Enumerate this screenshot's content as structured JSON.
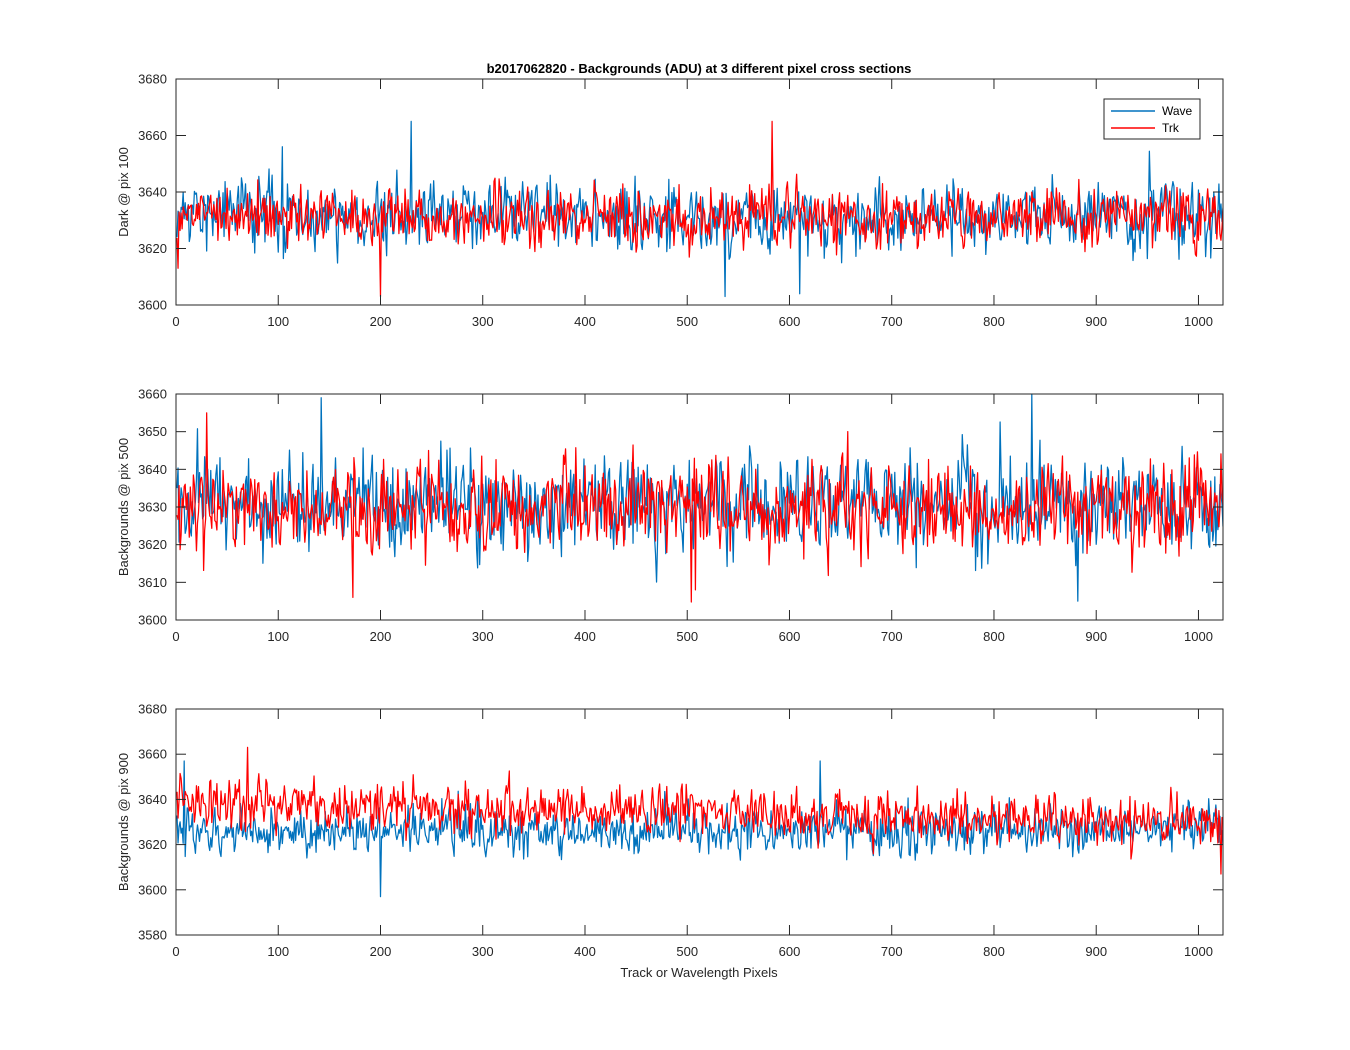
{
  "title": "b2017062820 - Backgrounds (ADU) at 3 different pixel cross sections",
  "xlabel": "Track or Wavelength Pixels",
  "legend": {
    "location": "top-right",
    "entries": [
      {
        "name": "Wave",
        "color": "#0072BD"
      },
      {
        "name": "Trk",
        "color": "#FF0000"
      }
    ]
  },
  "chart_data": [
    {
      "type": "line",
      "ylabel": "Dark @ pix 100",
      "xlim": [
        0,
        1024
      ],
      "ylim": [
        3600,
        3680
      ],
      "xticks": [
        "0",
        "100",
        "200",
        "300",
        "400",
        "500",
        "600",
        "700",
        "800",
        "900",
        "1000"
      ],
      "yticks": [
        "3600",
        "3620",
        "3640",
        "3660",
        "3680"
      ],
      "grid": false,
      "series": [
        {
          "name": "Wave",
          "color": "#0072BD",
          "x_range": [
            1,
            1024
          ],
          "mean": 3632,
          "spread": 7,
          "features": [
            {
              "x": 230,
              "y": 3665
            },
            {
              "x": 537,
              "y": 3603
            },
            {
              "x": 610,
              "y": 3604
            },
            {
              "x": 104,
              "y": 3656
            }
          ]
        },
        {
          "name": "Trk",
          "color": "#FF0000",
          "x_range": [
            1,
            1024
          ],
          "mean": 3631,
          "spread": 6,
          "features": [
            {
              "x": 583,
              "y": 3665
            },
            {
              "x": 200,
              "y": 3603
            },
            {
              "x": 2,
              "y": 3613
            }
          ]
        }
      ]
    },
    {
      "type": "line",
      "ylabel": "Backgrounds @ pix 500",
      "xlim": [
        0,
        1024
      ],
      "ylim": [
        3600,
        3660
      ],
      "xticks": [
        "0",
        "100",
        "200",
        "300",
        "400",
        "500",
        "600",
        "700",
        "800",
        "900",
        "1000"
      ],
      "yticks": [
        "3600",
        "3610",
        "3620",
        "3630",
        "3640",
        "3650",
        "3660"
      ],
      "grid": false,
      "series": [
        {
          "name": "Wave",
          "color": "#0072BD",
          "x_range": [
            1,
            1024
          ],
          "mean": 3631,
          "spread": 7.5,
          "features": [
            {
              "x": 142,
              "y": 3659
            },
            {
              "x": 837,
              "y": 3660
            },
            {
              "x": 882,
              "y": 3605
            }
          ]
        },
        {
          "name": "Trk",
          "color": "#FF0000",
          "x_range": [
            1,
            1024
          ],
          "mean": 3630,
          "spread": 7,
          "features": [
            {
              "x": 173,
              "y": 3606
            },
            {
              "x": 508,
              "y": 3608
            },
            {
              "x": 30,
              "y": 3655
            }
          ]
        }
      ]
    },
    {
      "type": "line",
      "ylabel": "Backgrounds @ pix 900",
      "xlim": [
        0,
        1024
      ],
      "ylim": [
        3580,
        3680
      ],
      "xticks": [
        "0",
        "100",
        "200",
        "300",
        "400",
        "500",
        "600",
        "700",
        "800",
        "900",
        "1000"
      ],
      "yticks": [
        "3580",
        "3600",
        "3620",
        "3640",
        "3660",
        "3680"
      ],
      "grid": false,
      "series": [
        {
          "name": "Wave",
          "color": "#0072BD",
          "x_range": [
            1,
            1024
          ],
          "mean_start": 3625,
          "mean_end": 3628,
          "spread": 6,
          "features": [
            {
              "x": 200,
              "y": 3597
            },
            {
              "x": 630,
              "y": 3657
            },
            {
              "x": 8,
              "y": 3657
            }
          ]
        },
        {
          "name": "Trk",
          "color": "#FF0000",
          "x_range": [
            1,
            1024
          ],
          "mean_start": 3638,
          "mean_end": 3630,
          "spread": 6,
          "features": [
            {
              "x": 70,
              "y": 3663
            },
            {
              "x": 1022,
              "y": 3607
            }
          ]
        }
      ]
    }
  ]
}
